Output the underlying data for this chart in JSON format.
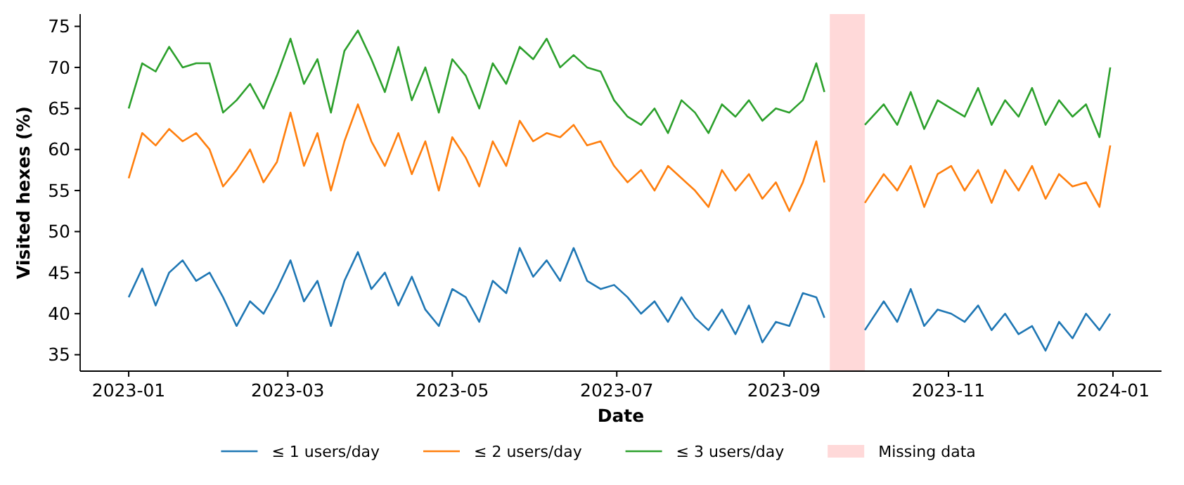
{
  "chart_data": {
    "type": "line",
    "xlabel": "Date",
    "ylabel": "Visited hexes (%)",
    "x": [
      "2023-01-01",
      "2023-01-06",
      "2023-01-11",
      "2023-01-16",
      "2023-01-21",
      "2023-01-26",
      "2023-01-31",
      "2023-02-05",
      "2023-02-10",
      "2023-02-15",
      "2023-02-20",
      "2023-02-25",
      "2023-03-02",
      "2023-03-07",
      "2023-03-12",
      "2023-03-17",
      "2023-03-22",
      "2023-03-27",
      "2023-04-01",
      "2023-04-06",
      "2023-04-11",
      "2023-04-16",
      "2023-04-21",
      "2023-04-26",
      "2023-05-01",
      "2023-05-06",
      "2023-05-11",
      "2023-05-16",
      "2023-05-21",
      "2023-05-26",
      "2023-05-31",
      "2023-06-05",
      "2023-06-10",
      "2023-06-15",
      "2023-06-20",
      "2023-06-25",
      "2023-06-30",
      "2023-07-05",
      "2023-07-10",
      "2023-07-15",
      "2023-07-20",
      "2023-07-25",
      "2023-07-30",
      "2023-08-04",
      "2023-08-09",
      "2023-08-14",
      "2023-08-19",
      "2023-08-24",
      "2023-08-29",
      "2023-09-03",
      "2023-09-08",
      "2023-09-13",
      "2023-09-16",
      "2023-09-23",
      "2023-10-01",
      "2023-10-08",
      "2023-10-13",
      "2023-10-18",
      "2023-10-23",
      "2023-10-28",
      "2023-11-02",
      "2023-11-07",
      "2023-11-12",
      "2023-11-17",
      "2023-11-22",
      "2023-11-27",
      "2023-12-02",
      "2023-12-07",
      "2023-12-12",
      "2023-12-17",
      "2023-12-22",
      "2023-12-27",
      "2023-12-31"
    ],
    "series": [
      {
        "name": "≤ 1 users/day",
        "color": "#1f77b4",
        "values": [
          42,
          45.5,
          41,
          45,
          46.5,
          44,
          45,
          42,
          38.5,
          41.5,
          40,
          43,
          46.5,
          41.5,
          44,
          38.5,
          44,
          47.5,
          43,
          45,
          41,
          44.5,
          40.5,
          38.5,
          43,
          42,
          39,
          44,
          42.5,
          48,
          44.5,
          46.5,
          44,
          48,
          44,
          43,
          43.5,
          42,
          40,
          41.5,
          39,
          42,
          39.5,
          38,
          40.5,
          37.5,
          41,
          36.5,
          39,
          38.5,
          42.5,
          42,
          39.5,
          null,
          38,
          41.5,
          39,
          43,
          38.5,
          40.5,
          40,
          39,
          41,
          38,
          40,
          37.5,
          38.5,
          35.5,
          39,
          37,
          40,
          38,
          40
        ]
      },
      {
        "name": "≤ 2 users/day",
        "color": "#ff7f0e",
        "values": [
          56.5,
          62,
          60.5,
          62.5,
          61,
          62,
          60,
          55.5,
          57.5,
          60,
          56,
          58.5,
          64.5,
          58,
          62,
          55,
          61,
          65.5,
          61,
          58,
          62,
          57,
          61,
          55,
          61.5,
          59,
          55.5,
          61,
          58,
          63.5,
          61,
          62,
          61.5,
          63,
          60.5,
          61,
          58,
          56,
          57.5,
          55,
          58,
          56.5,
          55,
          53,
          57.5,
          55,
          57,
          54,
          56,
          52.5,
          56,
          61,
          56,
          null,
          53.5,
          57,
          55,
          58,
          53,
          57,
          58,
          55,
          57.5,
          53.5,
          57.5,
          55,
          58,
          54,
          57,
          55.5,
          56,
          53,
          60.5
        ]
      },
      {
        "name": "≤ 3 users/day",
        "color": "#2ca02c",
        "values": [
          65,
          70.5,
          69.5,
          72.5,
          70,
          70.5,
          70.5,
          64.5,
          66,
          68,
          65,
          69,
          73.5,
          68,
          71,
          64.5,
          72,
          74.5,
          71,
          67,
          72.5,
          66,
          70,
          64.5,
          71,
          69,
          65,
          70.5,
          68,
          72.5,
          71,
          73.5,
          70,
          71.5,
          70,
          69.5,
          66,
          64,
          63,
          65,
          62,
          66,
          64.5,
          62,
          65.5,
          64,
          66,
          63.5,
          65,
          64.5,
          66,
          70.5,
          67,
          null,
          63,
          65.5,
          63,
          67,
          62.5,
          66,
          65,
          64,
          67.5,
          63,
          66,
          64,
          67.5,
          63,
          66,
          64,
          65.5,
          61.5,
          70
        ]
      }
    ],
    "bands": [
      {
        "axis": "x",
        "from": "2023-09-18",
        "to": "2023-10-01",
        "label": "Missing data",
        "color": "#ffd9d9"
      }
    ],
    "xlim": [
      "2022-12-14",
      "2024-01-19"
    ],
    "xticks": [
      "2023-01",
      "2023-03",
      "2023-05",
      "2023-07",
      "2023-09",
      "2023-11",
      "2024-01"
    ],
    "ylim": [
      33,
      76.5
    ],
    "yticks": [
      35,
      40,
      45,
      50,
      55,
      60,
      65,
      70,
      75
    ],
    "grid": false,
    "legend": "bottom",
    "marker": "none",
    "line_style": "solid"
  }
}
